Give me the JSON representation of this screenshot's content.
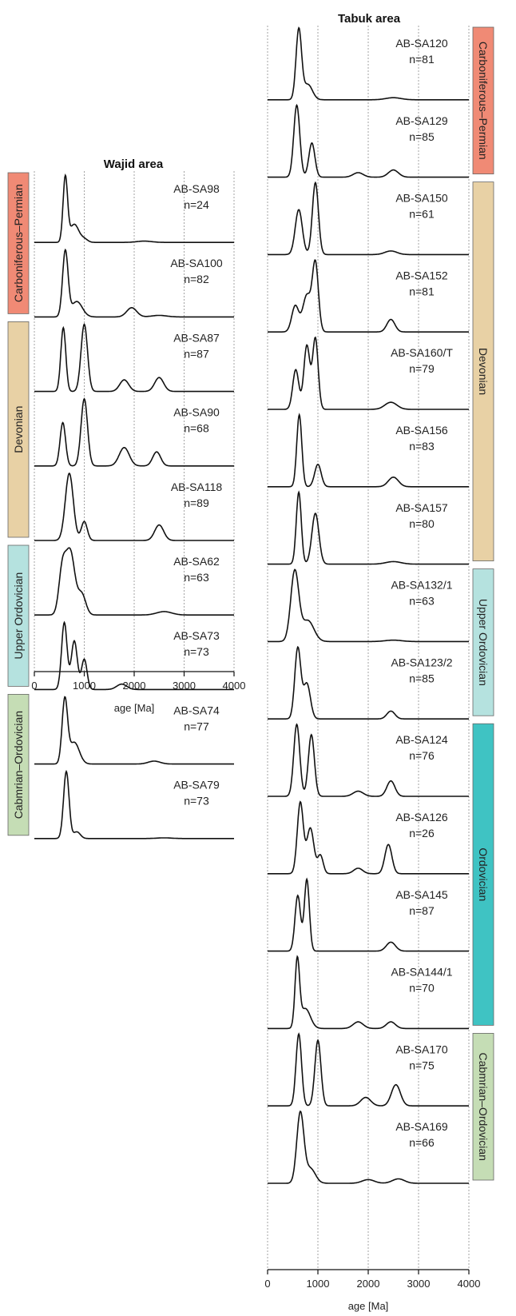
{
  "chart_data": [
    {
      "type": "line",
      "title": "Wajid area",
      "xlabel": "age [Ma]",
      "xlim": [
        0,
        4000
      ],
      "xticks": [
        0,
        1000,
        2000,
        3000,
        4000
      ],
      "grid": "vertical dotted lines at 0, 1000, 2000, 3000, 4000",
      "series": [
        {
          "name": "AB-SA98",
          "n_label": "n=24",
          "peaks": [
            [
              620,
              1.0,
              45
            ],
            [
              800,
              0.28,
              90
            ],
            [
              1000,
              0.05,
              70
            ],
            [
              2200,
              0.02,
              150
            ]
          ]
        },
        {
          "name": "AB-SA100",
          "n_label": "n=82",
          "peaks": [
            [
              620,
              0.85,
              55
            ],
            [
              850,
              0.2,
              110
            ],
            [
              1950,
              0.12,
              100
            ],
            [
              2500,
              0.02,
              150
            ]
          ]
        },
        {
          "name": "AB-SA87",
          "n_label": "n=87",
          "peaks": [
            [
              580,
              0.55,
              50
            ],
            [
              1000,
              0.58,
              65
            ],
            [
              1800,
              0.1,
              90
            ],
            [
              2500,
              0.12,
              90
            ]
          ]
        },
        {
          "name": "AB-SA90",
          "n_label": "n=68",
          "peaks": [
            [
              570,
              0.4,
              55
            ],
            [
              1000,
              0.62,
              65
            ],
            [
              1800,
              0.17,
              100
            ],
            [
              2450,
              0.13,
              80
            ]
          ]
        },
        {
          "name": "AB-SA118",
          "n_label": "n=89",
          "peaks": [
            [
              700,
              0.78,
              80
            ],
            [
              1000,
              0.22,
              60
            ],
            [
              2500,
              0.18,
              90
            ]
          ]
        },
        {
          "name": "AB-SA62",
          "n_label": "n=63",
          "peaks": [
            [
              560,
              0.38,
              70
            ],
            [
              720,
              0.55,
              90
            ],
            [
              950,
              0.18,
              80
            ],
            [
              2600,
              0.03,
              150
            ]
          ]
        },
        {
          "name": "AB-SA73",
          "n_label": "n=73",
          "peaks": [
            [
              600,
              0.62,
              55
            ],
            [
              800,
              0.45,
              60
            ],
            [
              1000,
              0.28,
              55
            ],
            [
              1750,
              0.05,
              100
            ]
          ]
        },
        {
          "name": "AB-SA74",
          "n_label": "n=77",
          "peaks": [
            [
              610,
              0.88,
              55
            ],
            [
              800,
              0.3,
              100
            ],
            [
              2400,
              0.04,
              120
            ]
          ]
        },
        {
          "name": "AB-SA79",
          "n_label": "n=73",
          "peaks": [
            [
              640,
              1.0,
              55
            ],
            [
              850,
              0.1,
              70
            ],
            [
              2600,
              0.01,
              150
            ]
          ]
        }
      ]
    },
    {
      "type": "line",
      "title": "Tabuk area",
      "xlabel": "age [Ma]",
      "xlim": [
        0,
        4000
      ],
      "xticks": [
        0,
        1000,
        2000,
        3000,
        4000
      ],
      "grid": "vertical dotted lines at 0, 1000, 2000, 3000, 4000",
      "series": [
        {
          "name": "AB-SA120",
          "n_label": "n=81",
          "peaks": [
            [
              620,
              1.0,
              55
            ],
            [
              800,
              0.22,
              90
            ],
            [
              2500,
              0.03,
              150
            ]
          ]
        },
        {
          "name": "AB-SA129",
          "n_label": "n=85",
          "peaks": [
            [
              580,
              0.8,
              60
            ],
            [
              880,
              0.38,
              60
            ],
            [
              1800,
              0.05,
              100
            ],
            [
              2500,
              0.08,
              100
            ]
          ]
        },
        {
          "name": "AB-SA150",
          "n_label": "n=61",
          "peaks": [
            [
              620,
              0.5,
              70
            ],
            [
              950,
              0.8,
              60
            ],
            [
              2450,
              0.04,
              120
            ]
          ]
        },
        {
          "name": "AB-SA152",
          "n_label": "n=81",
          "peaks": [
            [
              550,
              0.25,
              70
            ],
            [
              780,
              0.35,
              80
            ],
            [
              950,
              0.65,
              60
            ],
            [
              2450,
              0.12,
              80
            ]
          ]
        },
        {
          "name": "AB-SA160/T",
          "n_label": "n=79",
          "peaks": [
            [
              560,
              0.28,
              60
            ],
            [
              780,
              0.45,
              60
            ],
            [
              950,
              0.5,
              55
            ],
            [
              2450,
              0.05,
              120
            ]
          ]
        },
        {
          "name": "AB-SA156",
          "n_label": "n=83",
          "peaks": [
            [
              630,
              0.9,
              50
            ],
            [
              1000,
              0.28,
              65
            ],
            [
              2500,
              0.12,
              100
            ]
          ]
        },
        {
          "name": "AB-SA157",
          "n_label": "n=80",
          "peaks": [
            [
              620,
              0.85,
              50
            ],
            [
              950,
              0.6,
              70
            ],
            [
              2500,
              0.03,
              150
            ]
          ]
        },
        {
          "name": "AB-SA132/1",
          "n_label": "n=63",
          "peaks": [
            [
              540,
              1.0,
              80
            ],
            [
              800,
              0.3,
              120
            ],
            [
              2500,
              0.02,
              160
            ]
          ]
        },
        {
          "name": "AB-SA123/2",
          "n_label": "n=85",
          "peaks": [
            [
              600,
              0.9,
              60
            ],
            [
              780,
              0.45,
              70
            ],
            [
              2450,
              0.1,
              80
            ]
          ]
        },
        {
          "name": "AB-SA124",
          "n_label": "n=76",
          "peaks": [
            [
              580,
              0.56,
              60
            ],
            [
              870,
              0.48,
              60
            ],
            [
              1800,
              0.04,
              100
            ],
            [
              2450,
              0.12,
              80
            ]
          ]
        },
        {
          "name": "AB-SA126",
          "n_label": "n=26",
          "peaks": [
            [
              650,
              0.78,
              60
            ],
            [
              850,
              0.5,
              70
            ],
            [
              1050,
              0.2,
              55
            ],
            [
              1800,
              0.06,
              90
            ],
            [
              2400,
              0.32,
              70
            ]
          ]
        },
        {
          "name": "AB-SA145",
          "n_label": "n=87",
          "peaks": [
            [
              600,
              0.62,
              55
            ],
            [
              780,
              0.8,
              50
            ],
            [
              2450,
              0.1,
              90
            ]
          ]
        },
        {
          "name": "AB-SA144/1",
          "n_label": "n=70",
          "peaks": [
            [
              590,
              1.0,
              45
            ],
            [
              750,
              0.3,
              100
            ],
            [
              1800,
              0.1,
              100
            ],
            [
              2450,
              0.1,
              90
            ]
          ]
        },
        {
          "name": "AB-SA170",
          "n_label": "n=75",
          "peaks": [
            [
              620,
              0.68,
              55
            ],
            [
              1000,
              0.62,
              60
            ],
            [
              1950,
              0.08,
              100
            ],
            [
              2550,
              0.2,
              90
            ]
          ]
        },
        {
          "name": "AB-SA169",
          "n_label": "n=66",
          "peaks": [
            [
              650,
              0.95,
              70
            ],
            [
              850,
              0.2,
              100
            ],
            [
              2000,
              0.05,
              120
            ],
            [
              2600,
              0.06,
              120
            ]
          ]
        }
      ]
    }
  ],
  "wajid_groups": [
    {
      "label": "Carboniferous–Permian",
      "color": "#f08a75"
    },
    {
      "label": "Devonian",
      "color": "#e8d1a5"
    },
    {
      "label": "Upper Ordovician",
      "color": "#b5e2df"
    },
    {
      "label": "Cabmrian–Ordovician",
      "color": "#c5ddb5"
    }
  ],
  "tabuk_groups": [
    {
      "label": "Carboniferous–Permian",
      "color": "#f08a75"
    },
    {
      "label": "Devonian",
      "color": "#e8d1a5"
    },
    {
      "label": "Upper Ordovician",
      "color": "#b5e2df"
    },
    {
      "label": "Ordovician",
      "color": "#3fc3c3"
    },
    {
      "label": "Cabmrian–Ordovician",
      "color": "#c5ddb5"
    }
  ]
}
